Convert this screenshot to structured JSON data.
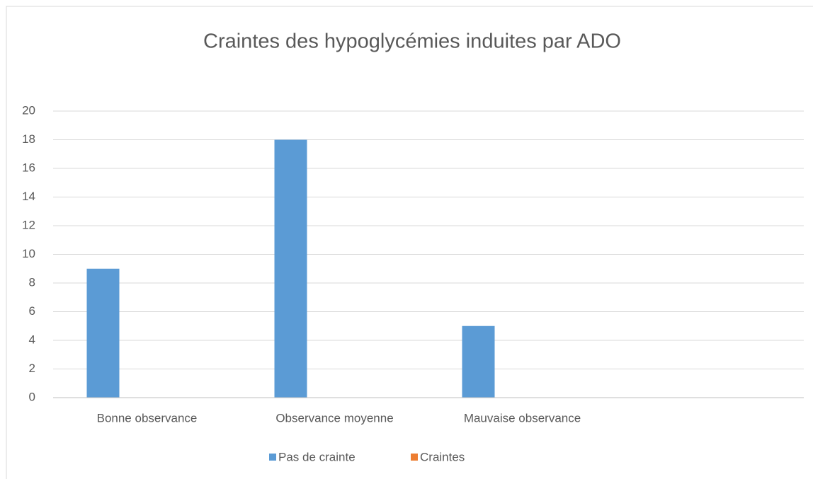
{
  "chart_data": {
    "type": "bar",
    "title": "Craintes des hypoglycémies induites par ADO",
    "categories": [
      "Bonne observance",
      "Observance moyenne",
      "Mauvaise observance",
      null
    ],
    "series": [
      {
        "name": "Pas de crainte",
        "color": "#5b9bd5",
        "values": [
          9,
          18,
          5,
          null
        ]
      },
      {
        "name": "Craintes",
        "color": "#ed7d31",
        "values": [
          0,
          0,
          0,
          null
        ]
      }
    ],
    "ylim": [
      0,
      20
    ],
    "yticks": [
      0,
      2,
      4,
      6,
      8,
      10,
      12,
      14,
      16,
      18,
      20
    ],
    "grid": true,
    "legend": "bottom"
  }
}
